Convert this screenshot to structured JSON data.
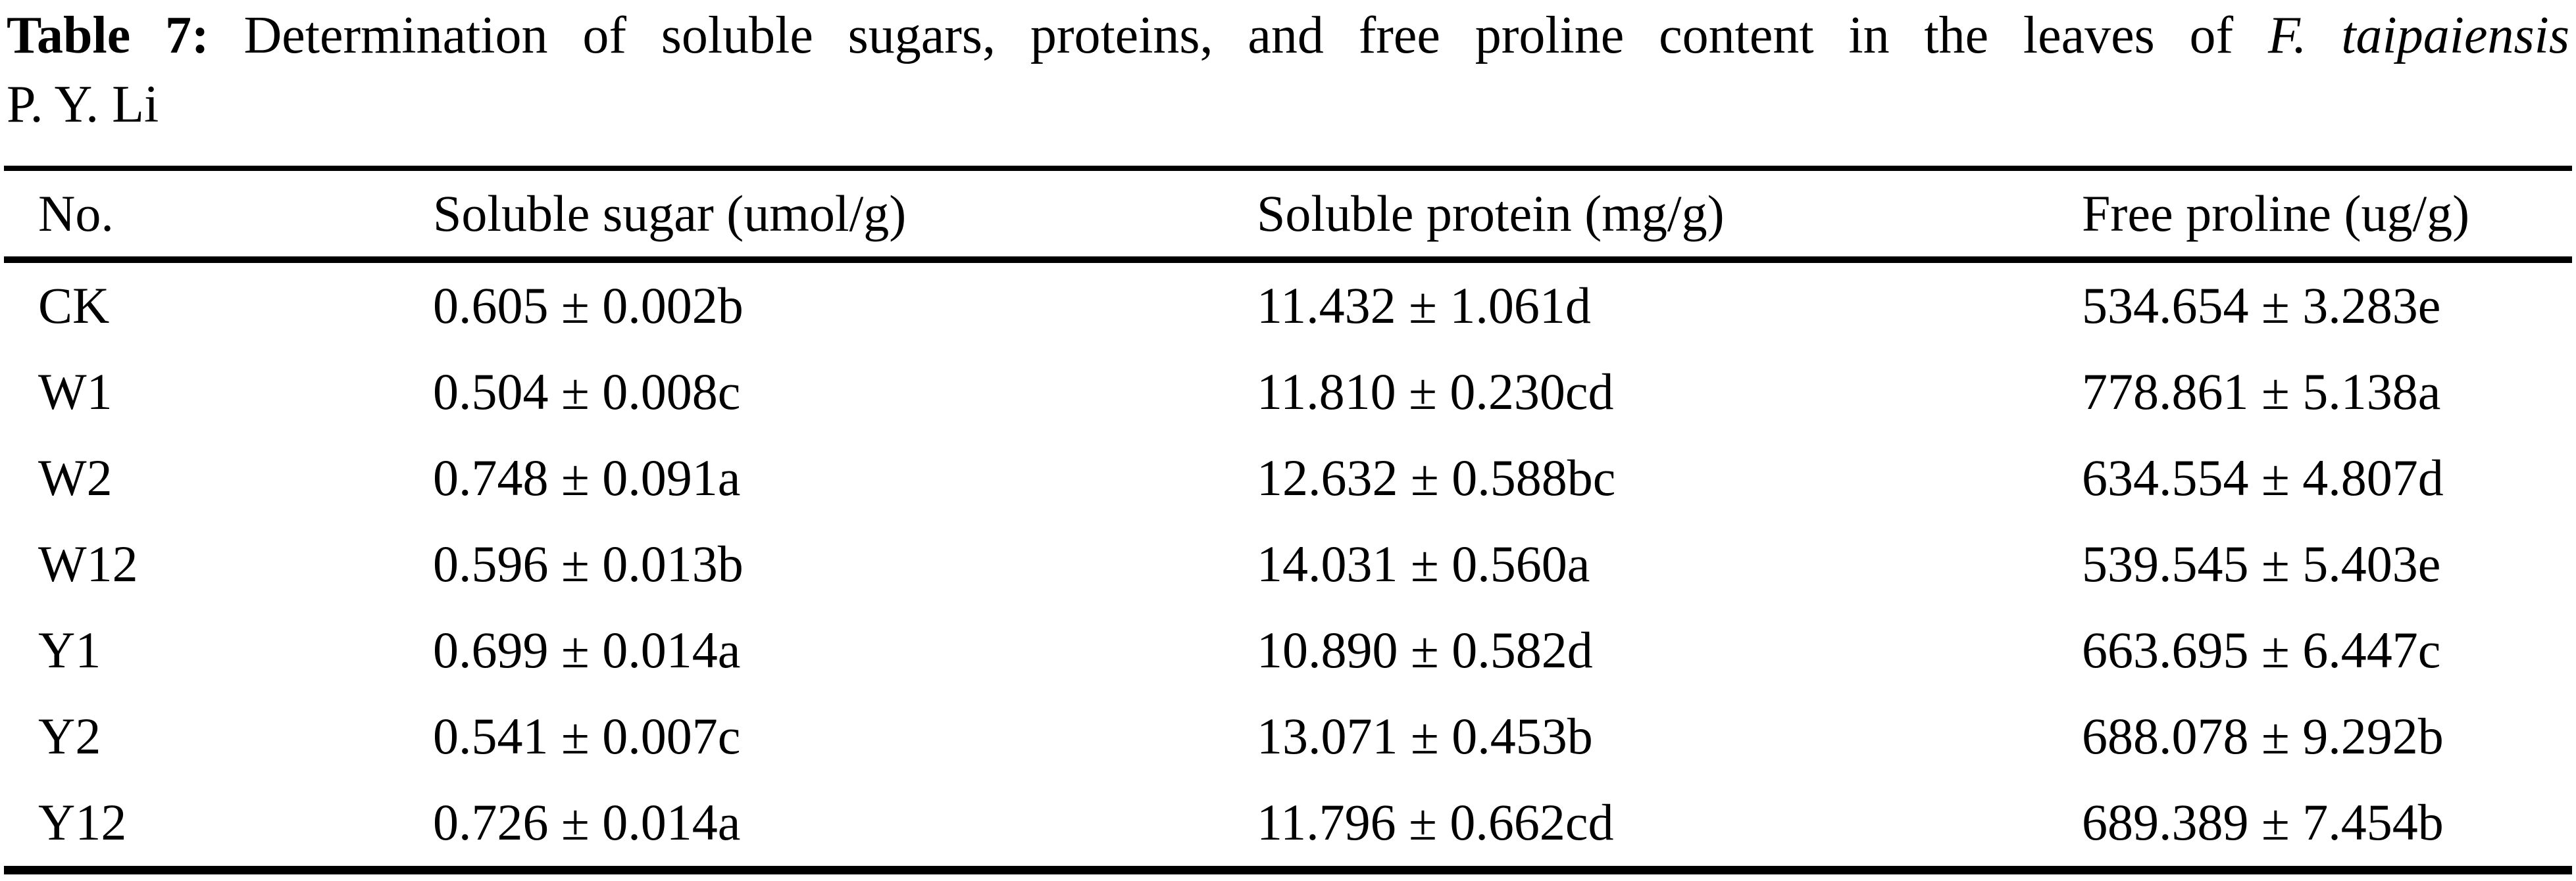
{
  "colors": {
    "text": "#000000",
    "background": "#ffffff",
    "rule": "#000000"
  },
  "caption": {
    "label": "Table 7:",
    "body": " Determination of soluble sugars, proteins, and free proline content in the leaves of ",
    "species": "F. taipaiensis",
    "suffix": "P. Y. Li"
  },
  "table": {
    "columns": [
      "No.",
      "Soluble sugar (umol/g)",
      "Soluble protein (mg/g)",
      "Free proline (ug/g)"
    ],
    "rows": [
      {
        "no": "CK",
        "sugar": "0.605 ± 0.002b",
        "protein": "11.432 ± 1.061d",
        "proline": "534.654 ± 3.283e"
      },
      {
        "no": "W1",
        "sugar": "0.504 ± 0.008c",
        "protein": "11.810 ± 0.230cd",
        "proline": "778.861 ± 5.138a"
      },
      {
        "no": "W2",
        "sugar": "0.748 ± 0.091a",
        "protein": "12.632 ± 0.588bc",
        "proline": "634.554 ± 4.807d"
      },
      {
        "no": "W12",
        "sugar": "0.596 ± 0.013b",
        "protein": "14.031 ± 0.560a",
        "proline": "539.545 ± 5.403e"
      },
      {
        "no": "Y1",
        "sugar": "0.699 ± 0.014a",
        "protein": "10.890 ± 0.582d",
        "proline": "663.695 ± 6.447c"
      },
      {
        "no": "Y2",
        "sugar": "0.541 ± 0.007c",
        "protein": "13.071 ± 0.453b",
        "proline": "688.078 ± 9.292b"
      },
      {
        "no": "Y12",
        "sugar": "0.726 ± 0.014a",
        "protein": "11.796 ± 0.662cd",
        "proline": "689.389 ± 7.454b"
      }
    ]
  }
}
